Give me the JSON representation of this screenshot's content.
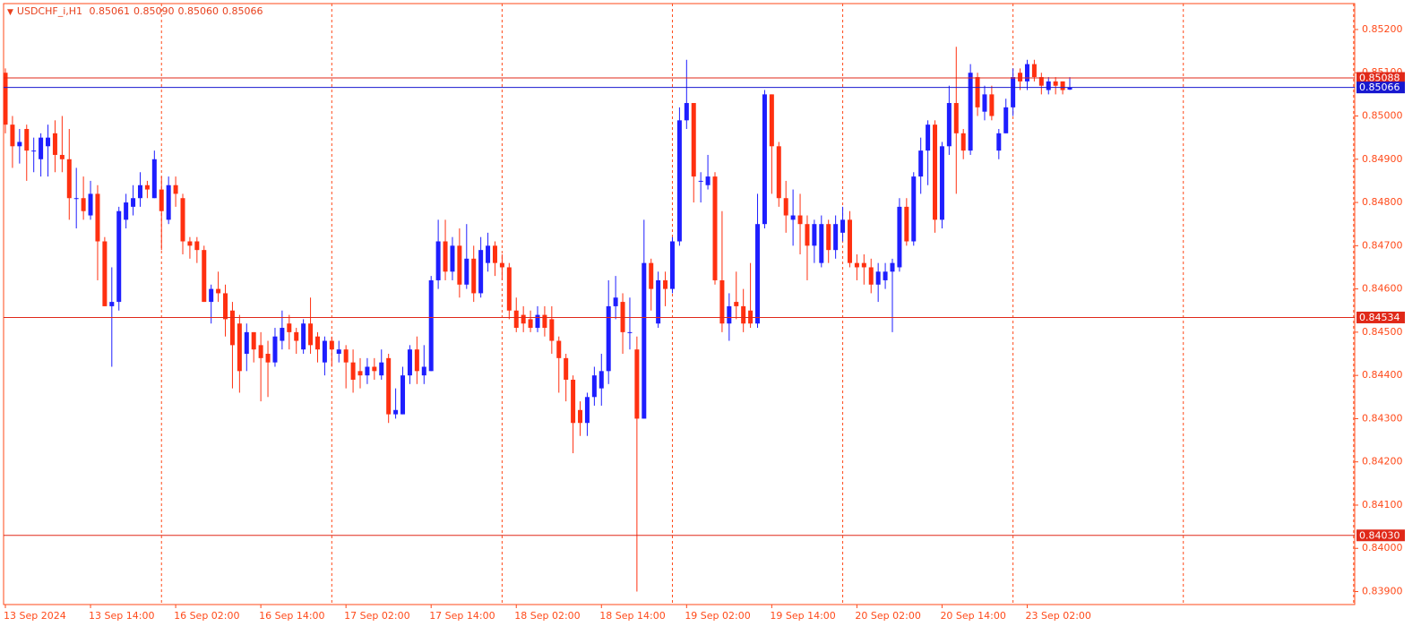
{
  "chart_data": {
    "type": "candlestick",
    "title": "USDCHF_i,H1",
    "ohlc_label": [
      "0.85061",
      "0.85090",
      "0.85060",
      "0.85066"
    ],
    "up_color": "#1e1eff",
    "down_color": "#ff3010",
    "axis_color": "#ff4a1a",
    "ylim": [
      0.8387,
      0.8526
    ],
    "yticks": [
      {
        "value": 0.852,
        "label": "0.85200"
      },
      {
        "value": 0.851,
        "label": "0.85100"
      },
      {
        "value": 0.85,
        "label": "0.85000"
      },
      {
        "value": 0.849,
        "label": "0.84900"
      },
      {
        "value": 0.848,
        "label": "0.84800"
      },
      {
        "value": 0.847,
        "label": "0.84700"
      },
      {
        "value": 0.846,
        "label": "0.84600"
      },
      {
        "value": 0.845,
        "label": "0.84500"
      },
      {
        "value": 0.844,
        "label": "0.84400"
      },
      {
        "value": 0.843,
        "label": "0.84300"
      },
      {
        "value": 0.842,
        "label": "0.84200"
      },
      {
        "value": 0.841,
        "label": "0.84100"
      },
      {
        "value": 0.84,
        "label": "0.84000"
      },
      {
        "value": 0.839,
        "label": "0.83900"
      }
    ],
    "hlines": [
      {
        "value": 0.85088,
        "color": "#e02818"
      },
      {
        "value": 0.85066,
        "color": "#1818d0"
      },
      {
        "value": 0.84534,
        "color": "#e02818"
      },
      {
        "value": 0.8403,
        "label": "0.84030",
        "color": "#e02818"
      }
    ],
    "categories": [
      "13 Sep 2024",
      null,
      null,
      null,
      null,
      null,
      null,
      null,
      null,
      null,
      null,
      null,
      "13 Sep 14:00",
      null,
      null,
      null,
      null,
      null,
      null,
      null,
      null,
      null,
      null,
      null,
      "16 Sep 02:00",
      null,
      null,
      null,
      null,
      null,
      null,
      null,
      null,
      null,
      null,
      null,
      "16 Sep 14:00",
      null,
      null,
      null,
      null,
      null,
      null,
      null,
      null,
      null,
      null,
      null,
      "17 Sep 02:00",
      null,
      null,
      null,
      null,
      null,
      null,
      null,
      null,
      null,
      null,
      null,
      "17 Sep 14:00",
      null,
      null,
      null,
      null,
      null,
      null,
      null,
      null,
      null,
      null,
      null,
      "18 Sep 02:00",
      null,
      null,
      null,
      null,
      null,
      null,
      null,
      null,
      null,
      null,
      null,
      "18 Sep 14:00",
      null,
      null,
      null,
      null,
      null,
      null,
      null,
      null,
      null,
      null,
      null,
      "19 Sep 02:00",
      null,
      null,
      null,
      null,
      null,
      null,
      null,
      null,
      null,
      null,
      null,
      "19 Sep 14:00",
      null,
      null,
      null,
      null,
      null,
      null,
      null,
      null,
      null,
      null,
      null,
      "20 Sep 02:00",
      null,
      null,
      null,
      null,
      null,
      null,
      null,
      null,
      null,
      null,
      null,
      "20 Sep 14:00",
      null,
      null,
      null,
      null,
      null,
      null,
      null,
      null,
      null,
      null,
      null,
      "23 Sep 02:00",
      null,
      null,
      null,
      null,
      null,
      null
    ],
    "open": [
      0.851,
      0.8498,
      0.8493,
      0.8497,
      0.8492,
      0.849,
      0.8493,
      0.8496,
      0.8491,
      0.849,
      0.8481,
      0.8481,
      0.8477,
      0.8482,
      0.8471,
      0.8456,
      0.8457,
      0.8476,
      0.8479,
      0.8481,
      0.8484,
      0.8481,
      0.8483,
      0.8476,
      0.8484,
      0.8481,
      0.8471,
      0.8471,
      0.8469,
      0.8457,
      0.846,
      0.8459,
      0.8455,
      0.8452,
      0.8445,
      0.845,
      0.8447,
      0.8445,
      0.8443,
      0.8448,
      0.8452,
      0.845,
      0.8446,
      0.8452,
      0.8449,
      0.8443,
      0.8448,
      0.8445,
      0.8446,
      0.8443,
      0.8441,
      0.844,
      0.8442,
      0.844,
      0.8444,
      0.8431,
      0.8431,
      0.844,
      0.8446,
      0.844,
      0.8441,
      0.8462,
      0.8471,
      0.8464,
      0.847,
      0.8461,
      0.8467,
      0.8459,
      0.8466,
      0.847,
      0.8466,
      0.8465,
      0.8455,
      0.8454,
      0.8453,
      0.8451,
      0.8454,
      0.8453,
      0.8448,
      0.8444,
      0.8439,
      0.8432,
      0.8429,
      0.8435,
      0.8437,
      0.8441,
      0.8456,
      0.8457,
      0.845,
      0.8446,
      0.843,
      0.8466,
      0.8452,
      0.8462,
      0.846,
      0.8471,
      0.8499,
      0.8503,
      0.8485,
      0.8484,
      0.8486,
      0.8462,
      0.8452,
      0.8457,
      0.8456,
      0.8455,
      0.8452,
      0.8475,
      0.8505,
      0.8493,
      0.8481,
      0.8476,
      0.8477,
      0.8475,
      0.847,
      0.8466,
      0.8475,
      0.8469,
      0.8473,
      0.8476,
      0.8466,
      0.8466,
      0.8465,
      0.8461,
      0.8462,
      0.8464,
      0.8465,
      0.8479,
      0.8471,
      0.8486,
      0.8492,
      0.8498,
      0.8476,
      0.8493,
      0.8503,
      0.8496,
      0.8492,
      0.8509,
      0.8501,
      0.8505,
      0.8492,
      0.8496,
      0.8502,
      0.851,
      0.8508,
      0.8512,
      0.8509,
      0.8506,
      0.8508,
      0.8508,
      0.85061
    ],
    "high": [
      0.8511,
      0.85,
      0.8497,
      0.8498,
      0.8495,
      0.8496,
      0.8498,
      0.8499,
      0.85,
      0.8497,
      0.8488,
      0.8486,
      0.8485,
      0.8484,
      0.8472,
      0.8465,
      0.8479,
      0.8482,
      0.8484,
      0.8487,
      0.8485,
      0.8492,
      0.8486,
      0.8486,
      0.8486,
      0.8482,
      0.8472,
      0.8472,
      0.847,
      0.8461,
      0.8464,
      0.8461,
      0.8457,
      0.8454,
      0.8452,
      0.845,
      0.845,
      0.8448,
      0.8451,
      0.8455,
      0.8454,
      0.8451,
      0.8453,
      0.8458,
      0.845,
      0.8449,
      0.8449,
      0.8448,
      0.8447,
      0.8446,
      0.8444,
      0.8444,
      0.8444,
      0.8446,
      0.8445,
      0.8437,
      0.8442,
      0.8447,
      0.8449,
      0.8447,
      0.8463,
      0.8476,
      0.8476,
      0.8472,
      0.8474,
      0.8475,
      0.847,
      0.8472,
      0.8473,
      0.8471,
      0.8468,
      0.8466,
      0.8458,
      0.8456,
      0.8455,
      0.8456,
      0.8456,
      0.8456,
      0.8449,
      0.8445,
      0.844,
      0.8434,
      0.8436,
      0.8442,
      0.8445,
      0.8462,
      0.8463,
      0.8459,
      0.8458,
      0.8449,
      0.8476,
      0.8467,
      0.8464,
      0.8464,
      0.8472,
      0.8502,
      0.8513,
      0.8503,
      0.8487,
      0.8491,
      0.8487,
      0.8478,
      0.8459,
      0.8464,
      0.846,
      0.8466,
      0.8482,
      0.8506,
      0.8505,
      0.8494,
      0.8485,
      0.8483,
      0.8482,
      0.8477,
      0.8476,
      0.8477,
      0.8476,
      0.8477,
      0.8479,
      0.8478,
      0.8468,
      0.8468,
      0.8467,
      0.8466,
      0.8466,
      0.8467,
      0.8481,
      0.8481,
      0.8487,
      0.8495,
      0.8499,
      0.8499,
      0.8494,
      0.8507,
      0.8516,
      0.8497,
      0.8512,
      0.851,
      0.8507,
      0.8507,
      0.8497,
      0.8504,
      0.8511,
      0.8511,
      0.8513,
      0.8513,
      0.851,
      0.8509,
      0.8509,
      0.8508,
      0.8509
    ],
    "low": [
      0.8496,
      0.8488,
      0.8489,
      0.8485,
      0.8487,
      0.8486,
      0.8486,
      0.8487,
      0.8487,
      0.8476,
      0.8474,
      0.8476,
      0.8476,
      0.8462,
      0.8456,
      0.8442,
      0.8455,
      0.8474,
      0.8477,
      0.8479,
      0.8481,
      0.8481,
      0.8469,
      0.8475,
      0.8479,
      0.8468,
      0.8467,
      0.8466,
      0.8457,
      0.8452,
      0.8457,
      0.8449,
      0.8437,
      0.8436,
      0.8441,
      0.8443,
      0.8434,
      0.8435,
      0.8442,
      0.8446,
      0.8446,
      0.8445,
      0.8445,
      0.8445,
      0.8443,
      0.844,
      0.8442,
      0.8443,
      0.8437,
      0.8436,
      0.8437,
      0.8438,
      0.8439,
      0.8439,
      0.8429,
      0.843,
      0.8431,
      0.8438,
      0.8438,
      0.8438,
      0.8441,
      0.846,
      0.8462,
      0.8462,
      0.8458,
      0.846,
      0.8457,
      0.8458,
      0.8464,
      0.8463,
      0.8462,
      0.8453,
      0.845,
      0.845,
      0.845,
      0.845,
      0.8449,
      0.8445,
      0.8436,
      0.8434,
      0.8422,
      0.8426,
      0.8426,
      0.8433,
      0.8433,
      0.8438,
      0.8453,
      0.8445,
      0.8446,
      0.839,
      0.843,
      0.8455,
      0.8451,
      0.8456,
      0.8459,
      0.847,
      0.8497,
      0.848,
      0.848,
      0.8483,
      0.8461,
      0.845,
      0.8448,
      0.8453,
      0.845,
      0.8451,
      0.8451,
      0.8474,
      0.8482,
      0.8479,
      0.8473,
      0.847,
      0.8468,
      0.8462,
      0.8466,
      0.8465,
      0.8466,
      0.8467,
      0.8471,
      0.8465,
      0.8462,
      0.8461,
      0.8459,
      0.8457,
      0.846,
      0.845,
      0.8464,
      0.847,
      0.847,
      0.8482,
      0.8484,
      0.8473,
      0.8474,
      0.8491,
      0.8482,
      0.849,
      0.8491,
      0.85,
      0.8499,
      0.8499,
      0.849,
      0.8496,
      0.85,
      0.8506,
      0.8506,
      0.8508,
      0.8505,
      0.8505,
      0.8505,
      0.8505,
      0.8506
    ],
    "close": [
      0.8498,
      0.8493,
      0.8494,
      0.8492,
      0.8492,
      0.8495,
      0.8495,
      0.8491,
      0.849,
      0.8481,
      0.8481,
      0.8478,
      0.8482,
      0.8471,
      0.8456,
      0.8457,
      0.8478,
      0.848,
      0.8481,
      0.8484,
      0.8483,
      0.849,
      0.8478,
      0.8484,
      0.8482,
      0.8471,
      0.847,
      0.8469,
      0.8457,
      0.846,
      0.8459,
      0.8453,
      0.8447,
      0.8441,
      0.845,
      0.8446,
      0.8444,
      0.8443,
      0.8449,
      0.8451,
      0.845,
      0.8448,
      0.8452,
      0.8447,
      0.8446,
      0.8448,
      0.8446,
      0.8446,
      0.8443,
      0.8439,
      0.844,
      0.8442,
      0.8441,
      0.8443,
      0.8431,
      0.8432,
      0.844,
      0.8446,
      0.8441,
      0.8442,
      0.8462,
      0.8471,
      0.8464,
      0.847,
      0.8461,
      0.8467,
      0.8459,
      0.8469,
      0.847,
      0.8466,
      0.8465,
      0.8455,
      0.8451,
      0.8452,
      0.8451,
      0.8454,
      0.8451,
      0.8448,
      0.8444,
      0.8439,
      0.8429,
      0.8429,
      0.8435,
      0.844,
      0.8441,
      0.8456,
      0.8458,
      0.845,
      0.845,
      0.843,
      0.8466,
      0.846,
      0.8462,
      0.846,
      0.8471,
      0.8499,
      0.8503,
      0.8486,
      0.8485,
      0.8486,
      0.8462,
      0.8452,
      0.8456,
      0.8456,
      0.8452,
      0.8452,
      0.8475,
      0.8505,
      0.8493,
      0.8481,
      0.8477,
      0.8477,
      0.8475,
      0.847,
      0.8475,
      0.8475,
      0.8469,
      0.8475,
      0.8476,
      0.8466,
      0.8465,
      0.8465,
      0.8461,
      0.8464,
      0.8464,
      0.8466,
      0.8479,
      0.8471,
      0.8486,
      0.8492,
      0.8498,
      0.8476,
      0.8493,
      0.8503,
      0.8496,
      0.8492,
      0.851,
      0.8502,
      0.8505,
      0.85,
      0.8496,
      0.8502,
      0.8509,
      0.8508,
      0.8512,
      0.8509,
      0.8507,
      0.8508,
      0.8507,
      0.8506,
      0.85066
    ]
  }
}
